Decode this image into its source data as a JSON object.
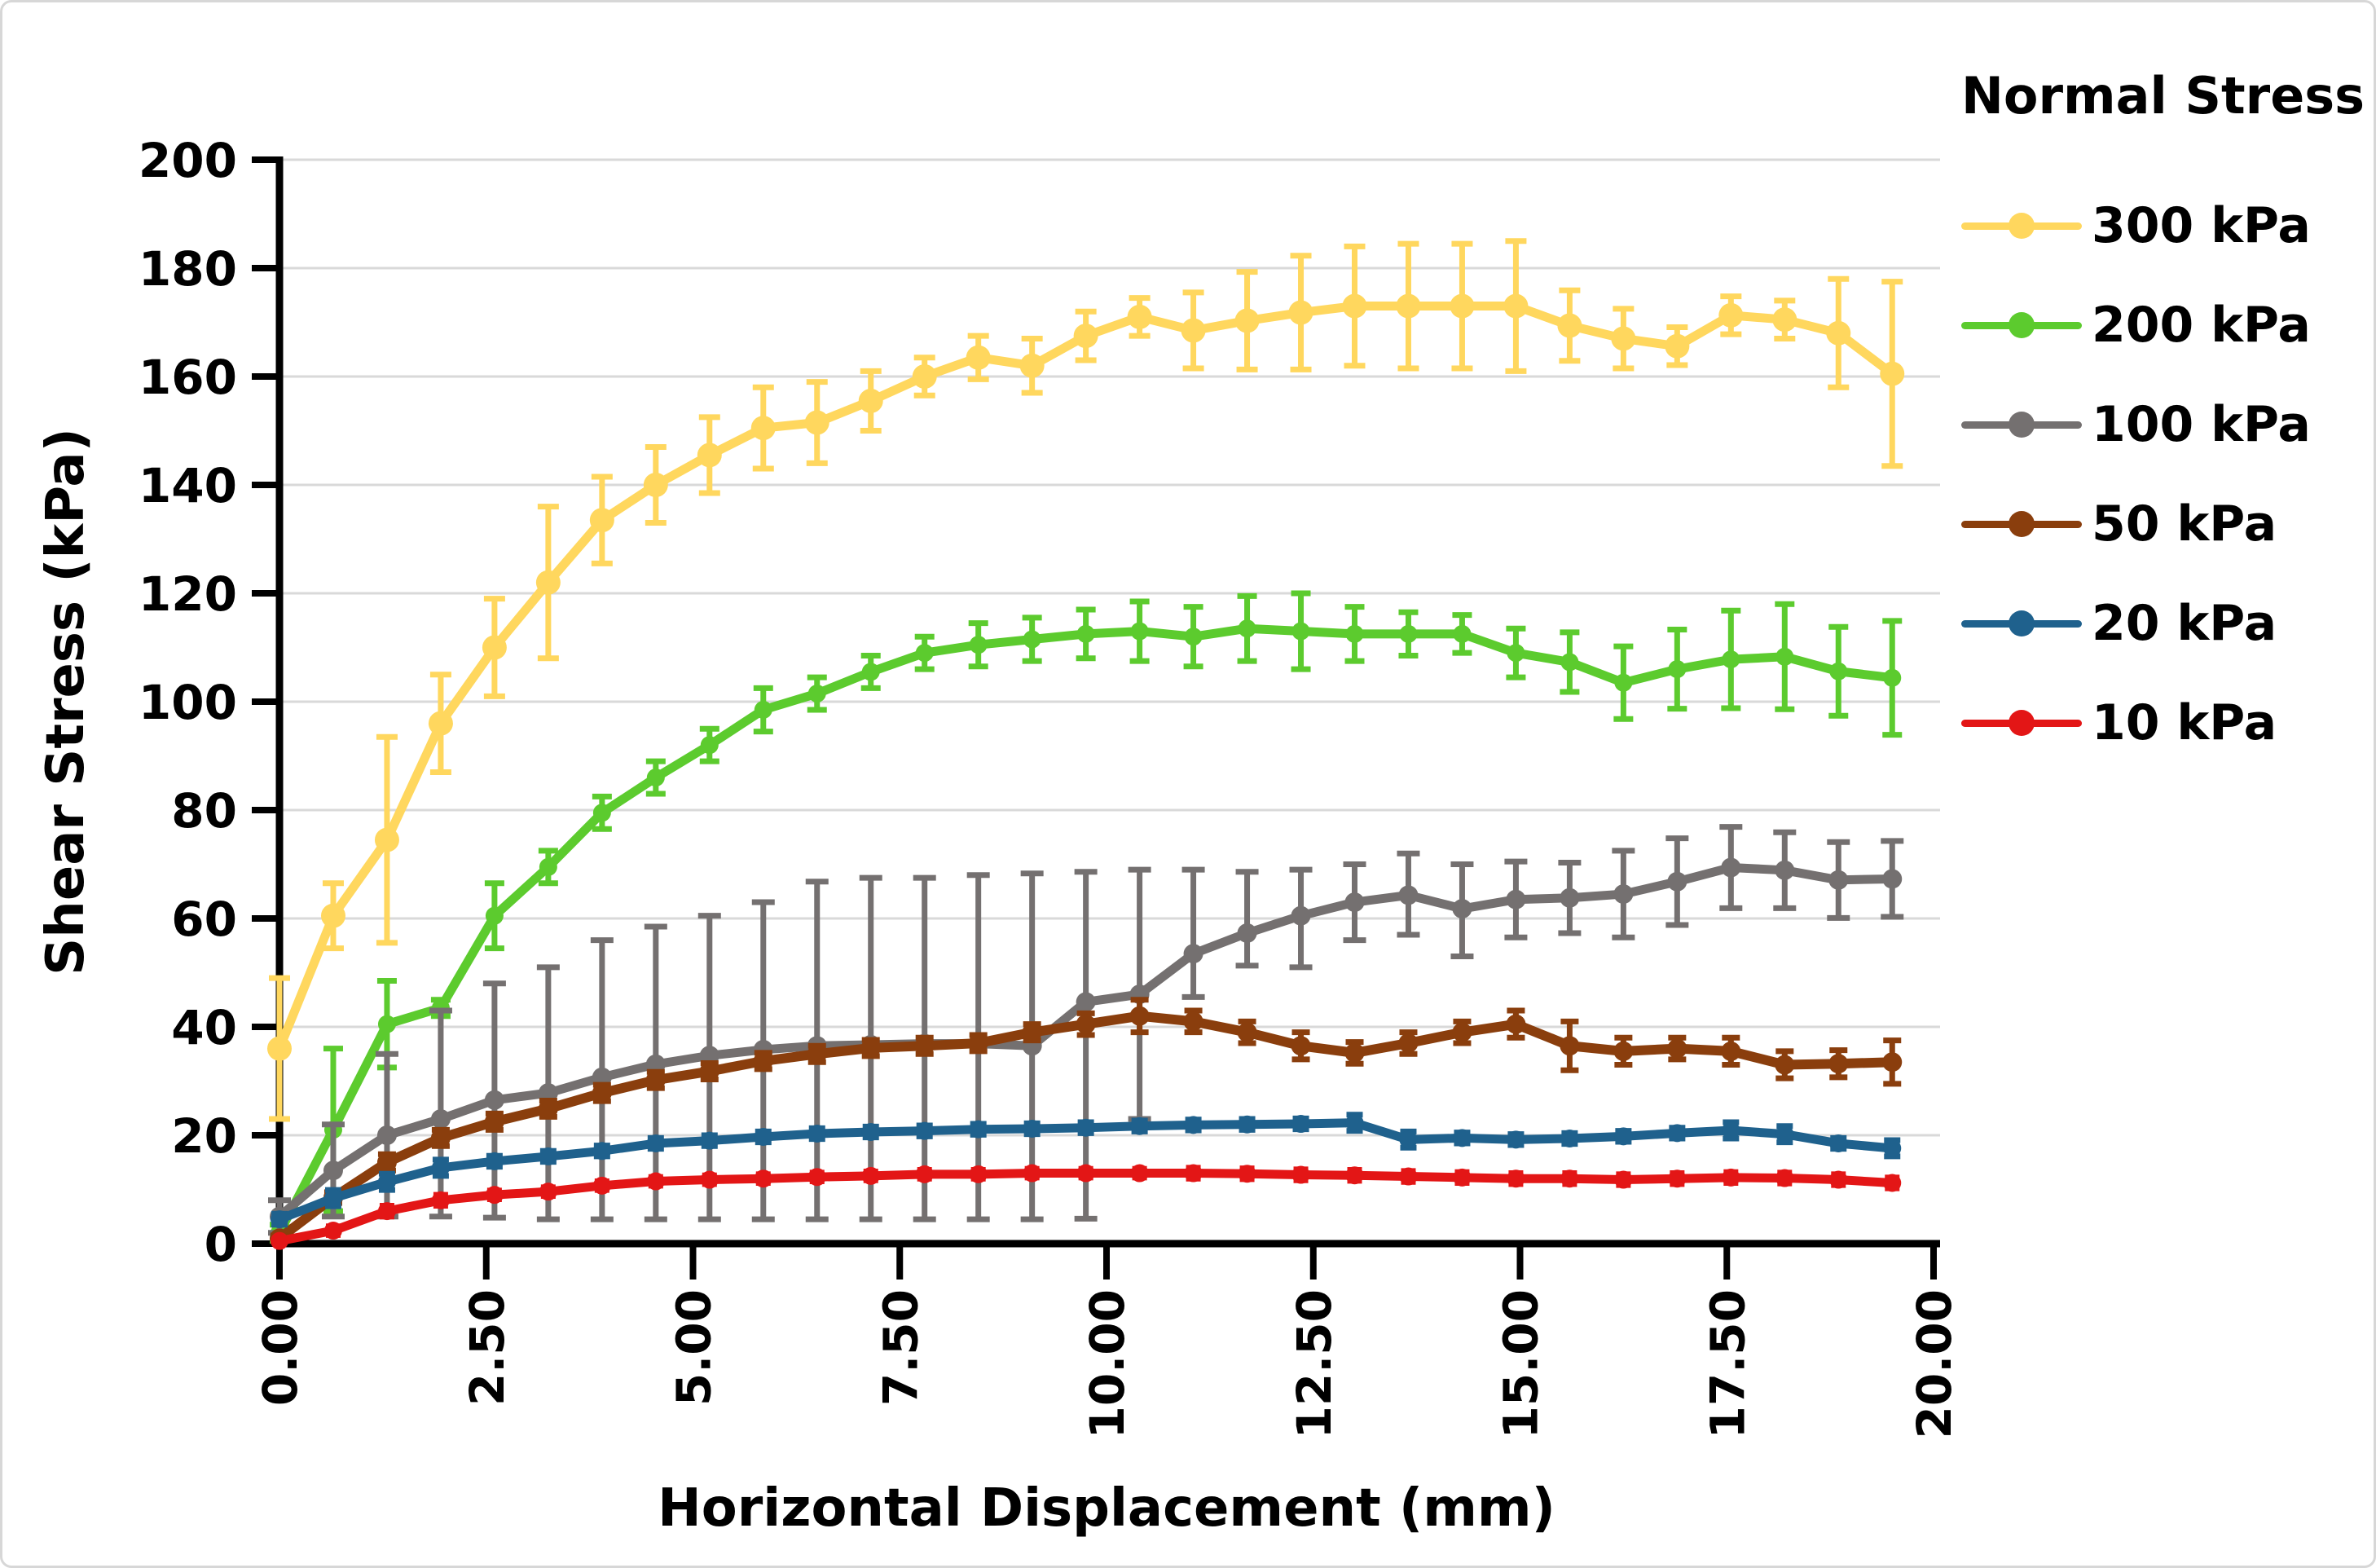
{
  "chart_data": {
    "type": "line",
    "title": "",
    "xlabel": "Horizontal Displacement (mm)",
    "ylabel": "Shear Stress (kPa)",
    "legend_title": "Normal Stress",
    "legend_position": "right",
    "grid": "horizontal gridlines every 20 kPa",
    "xlim": [
      0,
      20
    ],
    "ylim": [
      0,
      200
    ],
    "x_tick_values": [
      0,
      2.5,
      5,
      7.5,
      10,
      12.5,
      15,
      17.5,
      20
    ],
    "x_tick_labels": [
      "0.00",
      "2.50",
      "5.00",
      "7.50",
      "10.00",
      "12.50",
      "15.00",
      "17.50",
      "20.00"
    ],
    "y_tick_values": [
      0,
      20,
      40,
      60,
      80,
      100,
      120,
      140,
      160,
      180,
      200
    ],
    "y_tick_labels": [
      "0",
      "20",
      "40",
      "60",
      "80",
      "100",
      "120",
      "140",
      "160",
      "180",
      "200"
    ],
    "x": [
      0,
      0.65,
      1.3,
      1.95,
      2.6,
      3.25,
      3.9,
      4.55,
      5.2,
      5.85,
      6.5,
      7.15,
      7.8,
      8.45,
      9.1,
      9.75,
      10.4,
      11.05,
      11.7,
      12.35,
      13.0,
      13.65,
      14.3,
      14.95,
      15.6,
      16.25,
      16.9,
      17.55,
      18.2,
      18.85,
      19.5
    ],
    "series": [
      {
        "label": "300 kPa",
        "color": "#FFD75E",
        "values": [
          36,
          60.5,
          74.5,
          96,
          110,
          122,
          133.5,
          140,
          145.5,
          150.5,
          151.5,
          155.5,
          160,
          163.5,
          162,
          167.5,
          171,
          168.5,
          170.3,
          171.8,
          173,
          173,
          173,
          173,
          169.4,
          167,
          165.6,
          171.3,
          170.5,
          168,
          160.5
        ],
        "err_minus": [
          13,
          6,
          19,
          9,
          9,
          14,
          8,
          7,
          7,
          7.5,
          7.5,
          5.5,
          3.5,
          4,
          5,
          4.5,
          3.5,
          7,
          9,
          10.5,
          11,
          11.5,
          11.5,
          12,
          6.5,
          5.5,
          3.5,
          3.5,
          3.5,
          10,
          17
        ],
        "err_plus": [
          13,
          6,
          19,
          9,
          9,
          14,
          8,
          7,
          7,
          7.5,
          7.5,
          5.5,
          3.5,
          4,
          5,
          4.5,
          3.5,
          7,
          9,
          10.5,
          11,
          11.5,
          11.5,
          12,
          6.5,
          5.5,
          3.5,
          3.5,
          3.5,
          10,
          17
        ]
      },
      {
        "label": "200 kPa",
        "color": "#5CCB2E",
        "values": [
          2,
          21,
          40.5,
          43.5,
          60.5,
          69.5,
          79.5,
          86,
          92,
          98.5,
          101.5,
          105.5,
          109,
          110.5,
          111.5,
          112.5,
          113,
          112,
          113.5,
          113,
          112.5,
          112.5,
          112.5,
          109,
          107.3,
          103.5,
          106,
          107.8,
          108.3,
          105.6,
          104.4
        ],
        "err_minus": [
          1.5,
          15,
          8,
          1.5,
          6,
          3,
          3,
          3,
          3,
          4,
          3,
          3,
          3,
          4,
          4,
          4.5,
          5.5,
          5.5,
          6,
          7,
          5,
          4,
          3.5,
          4.5,
          5.5,
          6.7,
          7.3,
          9,
          9.7,
          8.2,
          10.5
        ],
        "err_plus": [
          1.5,
          15,
          8,
          1.5,
          6,
          3,
          3,
          3,
          3,
          4,
          3,
          3,
          3,
          4,
          4,
          4.5,
          5.5,
          5.5,
          6,
          7,
          5,
          4,
          3.5,
          4.5,
          5.5,
          6.7,
          7.3,
          9,
          9.7,
          8.2,
          10.5
        ]
      },
      {
        "label": "100 kPa",
        "color": "#747070",
        "values": [
          5,
          13.5,
          20,
          23,
          26.5,
          27.8,
          30.7,
          33.1,
          34.7,
          35.8,
          36.5,
          36.7,
          36.9,
          36.9,
          36.5,
          44.6,
          46,
          53.5,
          57.3,
          60.5,
          63,
          64.3,
          61.8,
          63.5,
          63.8,
          64.5,
          66.8,
          69.4,
          68.9,
          67.1,
          67.3
        ],
        "err_minus": [
          3,
          8.5,
          15,
          18,
          21.7,
          23.3,
          26.2,
          28.6,
          30.2,
          31.3,
          32,
          32.2,
          32.4,
          32.4,
          32,
          40,
          23,
          8,
          6,
          9.5,
          7,
          7.3,
          8.8,
          7,
          6.5,
          8,
          8,
          7.5,
          7,
          7,
          7
        ],
        "err_plus": [
          3,
          8.5,
          15,
          20,
          21.5,
          23.2,
          25.3,
          25.4,
          25.8,
          27.2,
          30.3,
          30.8,
          30.6,
          31.1,
          31.8,
          24,
          23,
          15.5,
          11.3,
          8.5,
          7,
          7.7,
          8.2,
          7,
          6.5,
          8,
          8,
          7.5,
          7,
          7,
          7
        ]
      },
      {
        "label": "50 kPa",
        "color": "#8A3E0D",
        "values": [
          1,
          8.5,
          15,
          19.5,
          22.5,
          24.9,
          27.8,
          30.2,
          31.8,
          33.7,
          35,
          36.1,
          36.5,
          37,
          39,
          40.5,
          42,
          41,
          39,
          36.5,
          35.2,
          37,
          39,
          40.5,
          36.5,
          35.5,
          36,
          35.5,
          33,
          33.2,
          33.5
        ],
        "err_minus": [
          0.5,
          1,
          1.5,
          1.5,
          1.5,
          1.5,
          1.5,
          1.5,
          1.5,
          1.5,
          1.5,
          1.5,
          1.5,
          1.5,
          1.5,
          2,
          3,
          2,
          2,
          2.5,
          2,
          2,
          2,
          2.5,
          4.5,
          2.5,
          2,
          2.5,
          2.5,
          2.5,
          4
        ],
        "err_plus": [
          0.5,
          1,
          1.5,
          1.5,
          1.5,
          1.5,
          1.5,
          1.5,
          1.5,
          1.5,
          1.5,
          1.5,
          1.5,
          1.5,
          1.5,
          2,
          3,
          2,
          2,
          2.5,
          2,
          2,
          2,
          2.5,
          4.5,
          2.5,
          2,
          2.5,
          2.5,
          2.5,
          4
        ]
      },
      {
        "label": "20 kPa",
        "color": "#1F618D",
        "values": [
          4.5,
          8.4,
          11.4,
          14,
          15.2,
          16.1,
          17.1,
          18.5,
          19,
          19.7,
          20.3,
          20.6,
          20.8,
          21.1,
          21.2,
          21.4,
          21.7,
          21.9,
          22,
          22.1,
          22.3,
          19.2,
          19.5,
          19.2,
          19.4,
          19.8,
          20.4,
          20.9,
          20.2,
          18.5,
          17.6
        ],
        "err_minus": [
          1,
          1.5,
          1.5,
          1.5,
          1,
          1,
          1,
          1,
          1,
          1,
          1,
          1,
          1,
          1,
          1,
          1,
          1,
          1,
          1,
          1,
          1.5,
          1.5,
          1,
          1,
          1,
          1,
          1,
          1.5,
          1.5,
          1,
          1.5
        ],
        "err_plus": [
          1,
          1.5,
          1.5,
          1.5,
          1,
          1,
          1,
          1,
          1,
          1,
          1,
          1,
          1,
          1,
          1,
          1,
          1,
          1,
          1,
          1,
          1.5,
          1.5,
          1,
          1,
          1,
          1,
          1,
          1.5,
          1.5,
          1,
          1.5
        ]
      },
      {
        "label": "10 kPa",
        "color": "#E31616",
        "values": [
          0.5,
          2.4,
          6,
          8,
          9,
          9.6,
          10.7,
          11.5,
          11.8,
          12,
          12.3,
          12.5,
          12.8,
          12.8,
          13,
          13,
          13,
          13,
          12.9,
          12.7,
          12.6,
          12.4,
          12.2,
          12,
          12,
          11.8,
          12,
          12.2,
          12.1,
          11.8,
          11.2
        ],
        "err_minus": [
          0.3,
          0.8,
          1,
          1,
          0.8,
          0.8,
          0.8,
          0.8,
          0.8,
          0.8,
          0.8,
          0.8,
          0.8,
          0.8,
          0.8,
          0.8,
          0.8,
          1,
          1,
          1,
          1,
          1,
          1,
          1,
          1,
          1,
          1,
          1,
          1,
          1,
          1
        ],
        "err_plus": [
          0.3,
          0.8,
          1,
          1,
          0.8,
          0.8,
          0.8,
          0.8,
          0.8,
          0.8,
          0.8,
          0.8,
          0.8,
          0.8,
          0.8,
          0.8,
          0.8,
          1,
          1,
          1,
          1,
          1,
          1,
          1,
          1,
          1,
          1,
          1,
          1,
          1,
          1
        ]
      }
    ]
  }
}
